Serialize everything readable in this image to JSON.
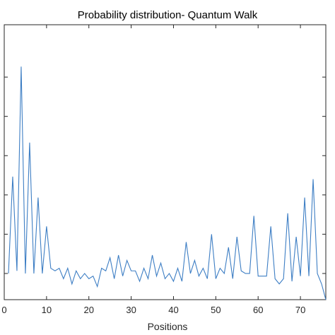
{
  "chart_data": {
    "type": "line",
    "title": "Probability distribution- Quantum Walk",
    "xlabel": "Positions",
    "ylabel": "",
    "xlim": [
      0,
      76
    ],
    "ylim": [
      0,
      1.05
    ],
    "xticks": [
      0,
      10,
      20,
      30,
      40,
      50,
      60,
      70
    ],
    "xtick_labels": [
      "0",
      "10",
      "20",
      "30",
      "40",
      "50",
      "60",
      "70"
    ],
    "yticks": [
      0.1,
      0.25,
      0.4,
      0.55,
      0.7,
      0.85
    ],
    "grid": false,
    "colors": {
      "line": "#3d7ec4",
      "axes": "#262626"
    },
    "series": [
      {
        "x": [
          1,
          2,
          3,
          4,
          5,
          6,
          7,
          8,
          9,
          10,
          11,
          12,
          13,
          14,
          15,
          16,
          17,
          18,
          19,
          20,
          21,
          22,
          23,
          24,
          25,
          26,
          27,
          28,
          29,
          30,
          31,
          32,
          33,
          34,
          35,
          36,
          37,
          38,
          39,
          40,
          41,
          42,
          43,
          44,
          45,
          46,
          47,
          48,
          49,
          50,
          51,
          52,
          53,
          54,
          55,
          56,
          57,
          58,
          59,
          60,
          61,
          62,
          63,
          64,
          65,
          66,
          67,
          68,
          69,
          70,
          71,
          72,
          73,
          74,
          75,
          76
        ],
        "y": [
          0.1,
          0.47,
          0.11,
          0.89,
          0.1,
          0.6,
          0.1,
          0.39,
          0.1,
          0.28,
          0.12,
          0.11,
          0.12,
          0.08,
          0.12,
          0.06,
          0.11,
          0.08,
          0.1,
          0.08,
          0.09,
          0.05,
          0.12,
          0.11,
          0.16,
          0.08,
          0.17,
          0.09,
          0.15,
          0.11,
          0.11,
          0.07,
          0.12,
          0.08,
          0.17,
          0.09,
          0.14,
          0.08,
          0.1,
          0.07,
          0.12,
          0.07,
          0.22,
          0.1,
          0.15,
          0.09,
          0.12,
          0.08,
          0.25,
          0.08,
          0.12,
          0.1,
          0.2,
          0.08,
          0.24,
          0.11,
          0.1,
          0.1,
          0.32,
          0.09,
          0.09,
          0.09,
          0.28,
          0.08,
          0.06,
          0.08,
          0.33,
          0.07,
          0.24,
          0.09,
          0.39,
          0.09,
          0.46,
          0.1,
          0.06,
          0
        ]
      }
    ]
  }
}
